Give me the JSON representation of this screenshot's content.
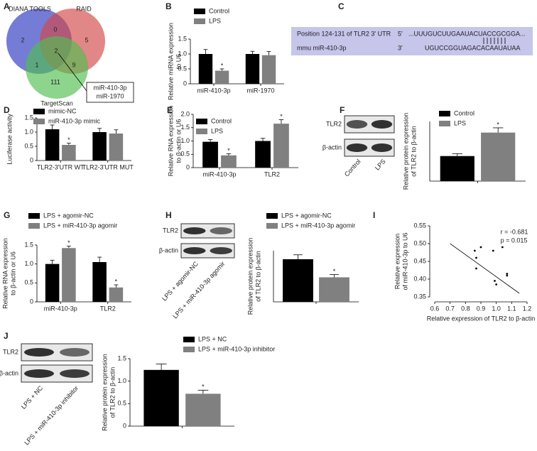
{
  "venn": {
    "panel": "A",
    "sets": [
      "DIANA TOOLS",
      "RAID",
      "TargetScan"
    ],
    "regions": [
      2,
      0,
      5,
      2,
      1,
      9,
      111
    ],
    "callout": [
      "miR-410-3p",
      "miR-1970"
    ]
  },
  "alignment": {
    "panel": "C",
    "rows": [
      {
        "label": "Position 124-131 of TLR2 3' UTR",
        "end": "5'",
        "sequence": "...UUUGUCUUGAAUACUACCGCGGA..."
      },
      {
        "label": "mmu miR-410-3p",
        "end": "3'",
        "sequence": "UGUCCGGUAGACACAAUAUAA"
      }
    ]
  },
  "blots": [
    {
      "rows": [
        "TLR2",
        "β-actin"
      ],
      "lanes": [
        "Control",
        "LPS"
      ]
    },
    {
      "rows": [
        "TLR2",
        "β-actin"
      ],
      "lanes": [
        "LPS + agomir-NC",
        "LPS + miR-410-3p agomir"
      ]
    },
    {
      "rows": [
        "TLR2",
        "β-actin"
      ],
      "lanes": [
        "LPS + NC",
        "LPS + miR-410-3p inhibitor"
      ]
    }
  ],
  "chart_data": [
    {
      "type": "bar",
      "panel": "B",
      "ylabel": [
        "Relative miRNA expression",
        "to U6"
      ],
      "categories": [
        "miR-410-3p",
        "miR-1970"
      ],
      "series": [
        {
          "name": "Control",
          "color": "#000000",
          "values": [
            1.0,
            1.0
          ],
          "errors": [
            0.15,
            0.09
          ]
        },
        {
          "name": "LPS",
          "color": "#808080",
          "values": [
            0.44,
            0.96
          ],
          "errors": [
            0.06,
            0.12
          ],
          "stars": [
            "*",
            null
          ]
        }
      ],
      "ylim": [
        0,
        1.5
      ],
      "yticks": [
        0,
        0.5,
        {
          "value": 1,
          "label": "1.0"
        },
        1.5
      ]
    },
    {
      "type": "bar",
      "panel": "D",
      "ylabel": [
        "Luciferase activity"
      ],
      "categories": [
        "TLR2-3'UTR WT",
        "TLR2-3'UTR MUT"
      ],
      "series": [
        {
          "name": "mimic-NC",
          "color": "#000000",
          "values": [
            1.1,
            1.0
          ],
          "errors": [
            0.15,
            0.13
          ]
        },
        {
          "name": "miR-410-3p mimic",
          "color": "#808080",
          "values": [
            0.55,
            0.95
          ],
          "errors": [
            0.06,
            0.13
          ],
          "stars": [
            "*",
            null
          ]
        }
      ],
      "ylim": [
        0,
        1.5
      ],
      "yticks": [
        0,
        0.5,
        {
          "value": 1,
          "label": "1.0"
        },
        1.5
      ]
    },
    {
      "type": "bar",
      "panel": "E",
      "ylabel": [
        "Relative RNA expression",
        "to β-actin or U6"
      ],
      "categories": [
        "miR-410-3p",
        "TLR2"
      ],
      "series": [
        {
          "name": "Control",
          "color": "#000000",
          "values": [
            0.97,
            1.0
          ],
          "errors": [
            0.08,
            0.1
          ]
        },
        {
          "name": "LPS",
          "color": "#808080",
          "values": [
            0.46,
            1.65
          ],
          "errors": [
            0.06,
            0.15
          ],
          "stars": [
            "*",
            "*"
          ]
        }
      ],
      "ylim": [
        0,
        2
      ],
      "yticks": [
        0,
        0.5,
        {
          "value": 1,
          "label": "1.0"
        },
        1.5,
        {
          "value": 2,
          "label": "2.0"
        }
      ]
    },
    {
      "type": "bar",
      "panel": "F",
      "ylabel": [
        "Relative protein expression",
        "of TLR2 to β-actin"
      ],
      "categories": [
        null
      ],
      "series": [
        {
          "name": "Control",
          "color": "#000000",
          "values": [
            0.63
          ],
          "errors": [
            0.06
          ]
        },
        {
          "name": "LPS",
          "color": "#808080",
          "values": [
            1.22
          ],
          "errors": [
            0.12
          ],
          "stars": [
            "*"
          ]
        }
      ],
      "ylim": [
        0,
        1.5
      ]
    },
    {
      "type": "bar",
      "panel": "G",
      "ylabel": [
        "Relative RNA expression",
        "to β-actin or U6"
      ],
      "categories": [
        "miR-410-3p",
        "TLR2"
      ],
      "series": [
        {
          "name": "LPS + agomir-NC",
          "color": "#000000",
          "values": [
            1.0,
            1.05
          ],
          "errors": [
            0.1,
            0.13
          ]
        },
        {
          "name": "LPS + miR-410-3p agomir",
          "color": "#808080",
          "values": [
            1.42,
            0.38
          ],
          "errors": [
            0.05,
            0.07
          ],
          "stars": [
            "*",
            "*"
          ]
        }
      ],
      "ylim": [
        0,
        1.5
      ],
      "yticks": [
        0,
        0.5,
        {
          "value": 1,
          "label": "1.0"
        },
        1.5
      ]
    },
    {
      "type": "bar",
      "panel": "H",
      "ylabel": [
        "Relative protein expression",
        "of TLR2 to β-actin"
      ],
      "categories": [
        null
      ],
      "series": [
        {
          "name": "LPS + agomir-NC",
          "color": "#000000",
          "values": [
            1.25
          ],
          "errors": [
            0.13
          ]
        },
        {
          "name": "LPS + miR-410-3p agomir",
          "color": "#808080",
          "values": [
            0.72
          ],
          "errors": [
            0.08
          ],
          "stars": [
            "*"
          ]
        }
      ],
      "ylim": [
        0,
        1.5
      ]
    },
    {
      "type": "scatter",
      "panel": "I",
      "ylabel": [
        "Relative expression",
        "of miR-410-3p to U6"
      ],
      "xlabel": "Relative expression of TLR2 to β-actin",
      "x": [
        0.86,
        0.87,
        0.87,
        0.9,
        0.98,
        0.99,
        1.0,
        1.04,
        1.07,
        1.07
      ],
      "values": [
        0.48,
        0.46,
        0.43,
        0.49,
        0.48,
        0.395,
        0.385,
        0.49,
        0.415,
        0.41
      ],
      "fit": {
        "x": [
          0.7,
          1.15
        ],
        "y": [
          0.5,
          0.36
        ]
      },
      "annotations": [
        "r = -0.681",
        "p = 0.015"
      ],
      "xlim": [
        0.6,
        1.2
      ],
      "ylim": [
        0.35,
        0.55
      ],
      "xticks": [
        0.6,
        0.7,
        0.8,
        0.9,
        {
          "value": 1,
          "label": "1.0"
        },
        1.1,
        1.2
      ],
      "yticks": [
        0.35,
        {
          "value": 0.4,
          "label": "0.40"
        },
        0.45,
        {
          "value": 0.5,
          "label": "0.50"
        },
        0.55
      ]
    },
    {
      "type": "bar",
      "panel": "J",
      "ylabel": [
        "Relative protein expression",
        "of TLR2 to β-actin"
      ],
      "categories": [
        null
      ],
      "series": [
        {
          "name": "LPS + NC",
          "color": "#000000",
          "values": [
            1.25
          ],
          "errors": [
            0.13
          ]
        },
        {
          "name": "LPS + miR-410-3p inhibitor",
          "color": "#808080",
          "values": [
            0.72
          ],
          "errors": [
            0.08
          ],
          "stars": [
            "*"
          ]
        }
      ],
      "ylim": [
        0,
        1.5
      ],
      "yticks": [
        0,
        0.5,
        {
          "value": 1,
          "label": "1.0"
        },
        1.5
      ]
    }
  ]
}
